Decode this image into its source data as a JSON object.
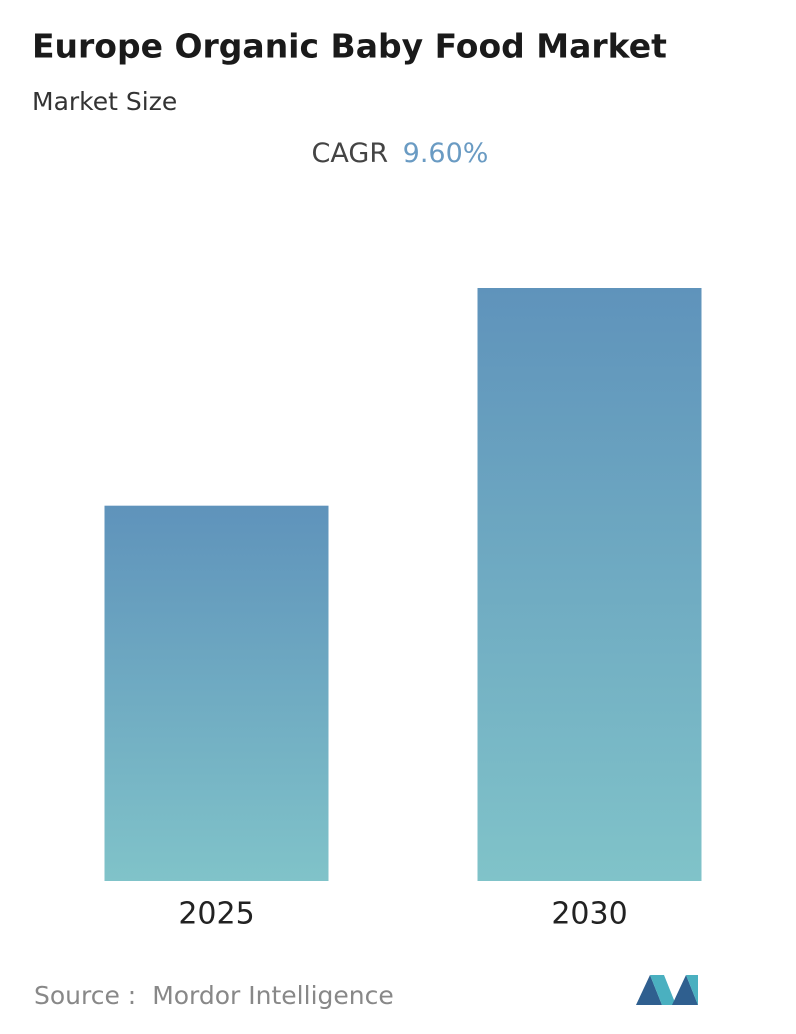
{
  "chart_data": {
    "type": "bar",
    "title": "Europe Organic Baby Food Market",
    "subtitle": "Market Size",
    "cagr_label": "CAGR",
    "cagr_value": "9.60%",
    "categories": [
      "2025",
      "2030"
    ],
    "values": [
      100,
      158
    ],
    "ylim": [
      0,
      158
    ],
    "color_top": "#5f93bb",
    "color_bottom": "#80c3c9",
    "source_label": "Source :",
    "source": "Mordor Intelligence"
  }
}
